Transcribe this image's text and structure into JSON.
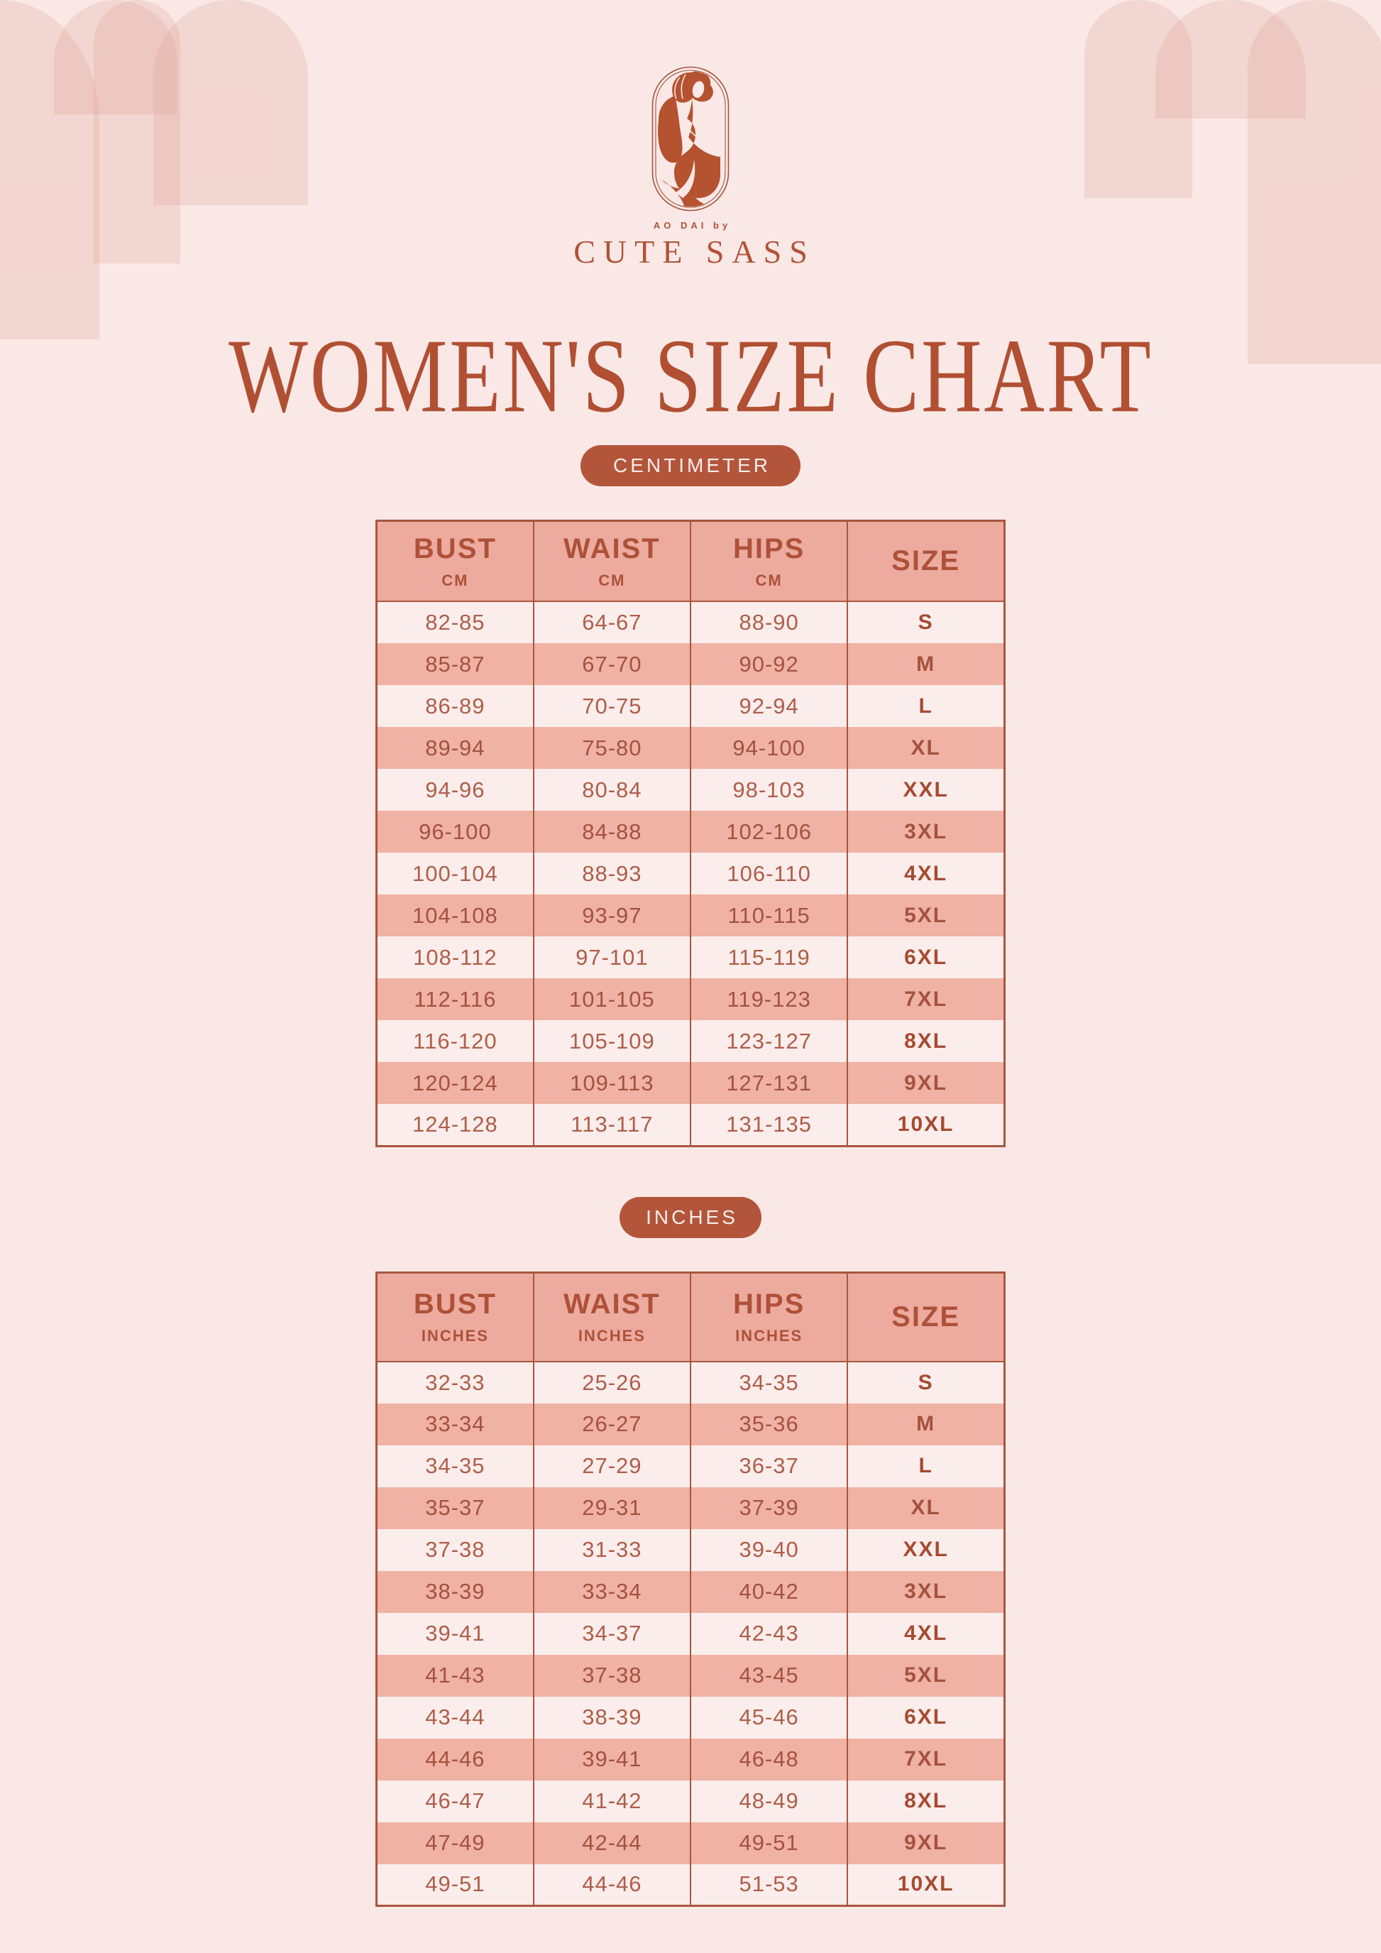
{
  "brand": {
    "tagline": "AO DAI by",
    "name": "CUTE SASS",
    "logo_icon": "woman-silhouette-in-oval"
  },
  "title": "WOMEN'S SIZE CHART",
  "colors": {
    "page_background": "#f9e8e6",
    "accent_terracotta": "#b3553a",
    "table_border": "#a9563e",
    "header_cell_bg": "#ecab9e",
    "row_pink_bg": "#efb2a5",
    "row_light_bg": "#fbedeb",
    "pill_text": "#f8ece9",
    "title_text": "#b14f32",
    "decor_arch": "rgba(226,163,152,0.26)"
  },
  "sections": [
    {
      "badge": "CENTIMETER",
      "columns": [
        {
          "key": "bust",
          "label": "BUST",
          "sublabel": "CM"
        },
        {
          "key": "waist",
          "label": "WAIST",
          "sublabel": "CM"
        },
        {
          "key": "hips",
          "label": "HIPS",
          "sublabel": "CM"
        },
        {
          "key": "size",
          "label": "SIZE",
          "sublabel": ""
        }
      ],
      "rows": [
        {
          "bust": "82-85",
          "waist": "64-67",
          "hips": "88-90",
          "size": "S"
        },
        {
          "bust": "85-87",
          "waist": "67-70",
          "hips": "90-92",
          "size": "M"
        },
        {
          "bust": "86-89",
          "waist": "70-75",
          "hips": "92-94",
          "size": "L"
        },
        {
          "bust": "89-94",
          "waist": "75-80",
          "hips": "94-100",
          "size": "XL"
        },
        {
          "bust": "94-96",
          "waist": "80-84",
          "hips": "98-103",
          "size": "XXL"
        },
        {
          "bust": "96-100",
          "waist": "84-88",
          "hips": "102-106",
          "size": "3XL"
        },
        {
          "bust": "100-104",
          "waist": "88-93",
          "hips": "106-110",
          "size": "4XL"
        },
        {
          "bust": "104-108",
          "waist": "93-97",
          "hips": "110-115",
          "size": "5XL"
        },
        {
          "bust": "108-112",
          "waist": "97-101",
          "hips": "115-119",
          "size": "6XL"
        },
        {
          "bust": "112-116",
          "waist": "101-105",
          "hips": "119-123",
          "size": "7XL"
        },
        {
          "bust": "116-120",
          "waist": "105-109",
          "hips": "123-127",
          "size": "8XL"
        },
        {
          "bust": "120-124",
          "waist": "109-113",
          "hips": "127-131",
          "size": "9XL"
        },
        {
          "bust": "124-128",
          "waist": "113-117",
          "hips": "131-135",
          "size": "10XL"
        }
      ]
    },
    {
      "badge": "INCHES",
      "columns": [
        {
          "key": "bust",
          "label": "BUST",
          "sublabel": "INCHES"
        },
        {
          "key": "waist",
          "label": "WAIST",
          "sublabel": "INCHES"
        },
        {
          "key": "hips",
          "label": "HIPS",
          "sublabel": "INCHES"
        },
        {
          "key": "size",
          "label": "SIZE",
          "sublabel": ""
        }
      ],
      "rows": [
        {
          "bust": "32-33",
          "waist": "25-26",
          "hips": "34-35",
          "size": "S"
        },
        {
          "bust": "33-34",
          "waist": "26-27",
          "hips": "35-36",
          "size": "M"
        },
        {
          "bust": "34-35",
          "waist": "27-29",
          "hips": "36-37",
          "size": "L"
        },
        {
          "bust": "35-37",
          "waist": "29-31",
          "hips": "37-39",
          "size": "XL"
        },
        {
          "bust": "37-38",
          "waist": "31-33",
          "hips": "39-40",
          "size": "XXL"
        },
        {
          "bust": "38-39",
          "waist": "33-34",
          "hips": "40-42",
          "size": "3XL"
        },
        {
          "bust": "39-41",
          "waist": "34-37",
          "hips": "42-43",
          "size": "4XL"
        },
        {
          "bust": "41-43",
          "waist": "37-38",
          "hips": "43-45",
          "size": "5XL"
        },
        {
          "bust": "43-44",
          "waist": "38-39",
          "hips": "45-46",
          "size": "6XL"
        },
        {
          "bust": "44-46",
          "waist": "39-41",
          "hips": "46-48",
          "size": "7XL"
        },
        {
          "bust": "46-47",
          "waist": "41-42",
          "hips": "48-49",
          "size": "8XL"
        },
        {
          "bust": "47-49",
          "waist": "42-44",
          "hips": "49-51",
          "size": "9XL"
        },
        {
          "bust": "49-51",
          "waist": "44-46",
          "hips": "51-53",
          "size": "10XL"
        }
      ]
    }
  ]
}
